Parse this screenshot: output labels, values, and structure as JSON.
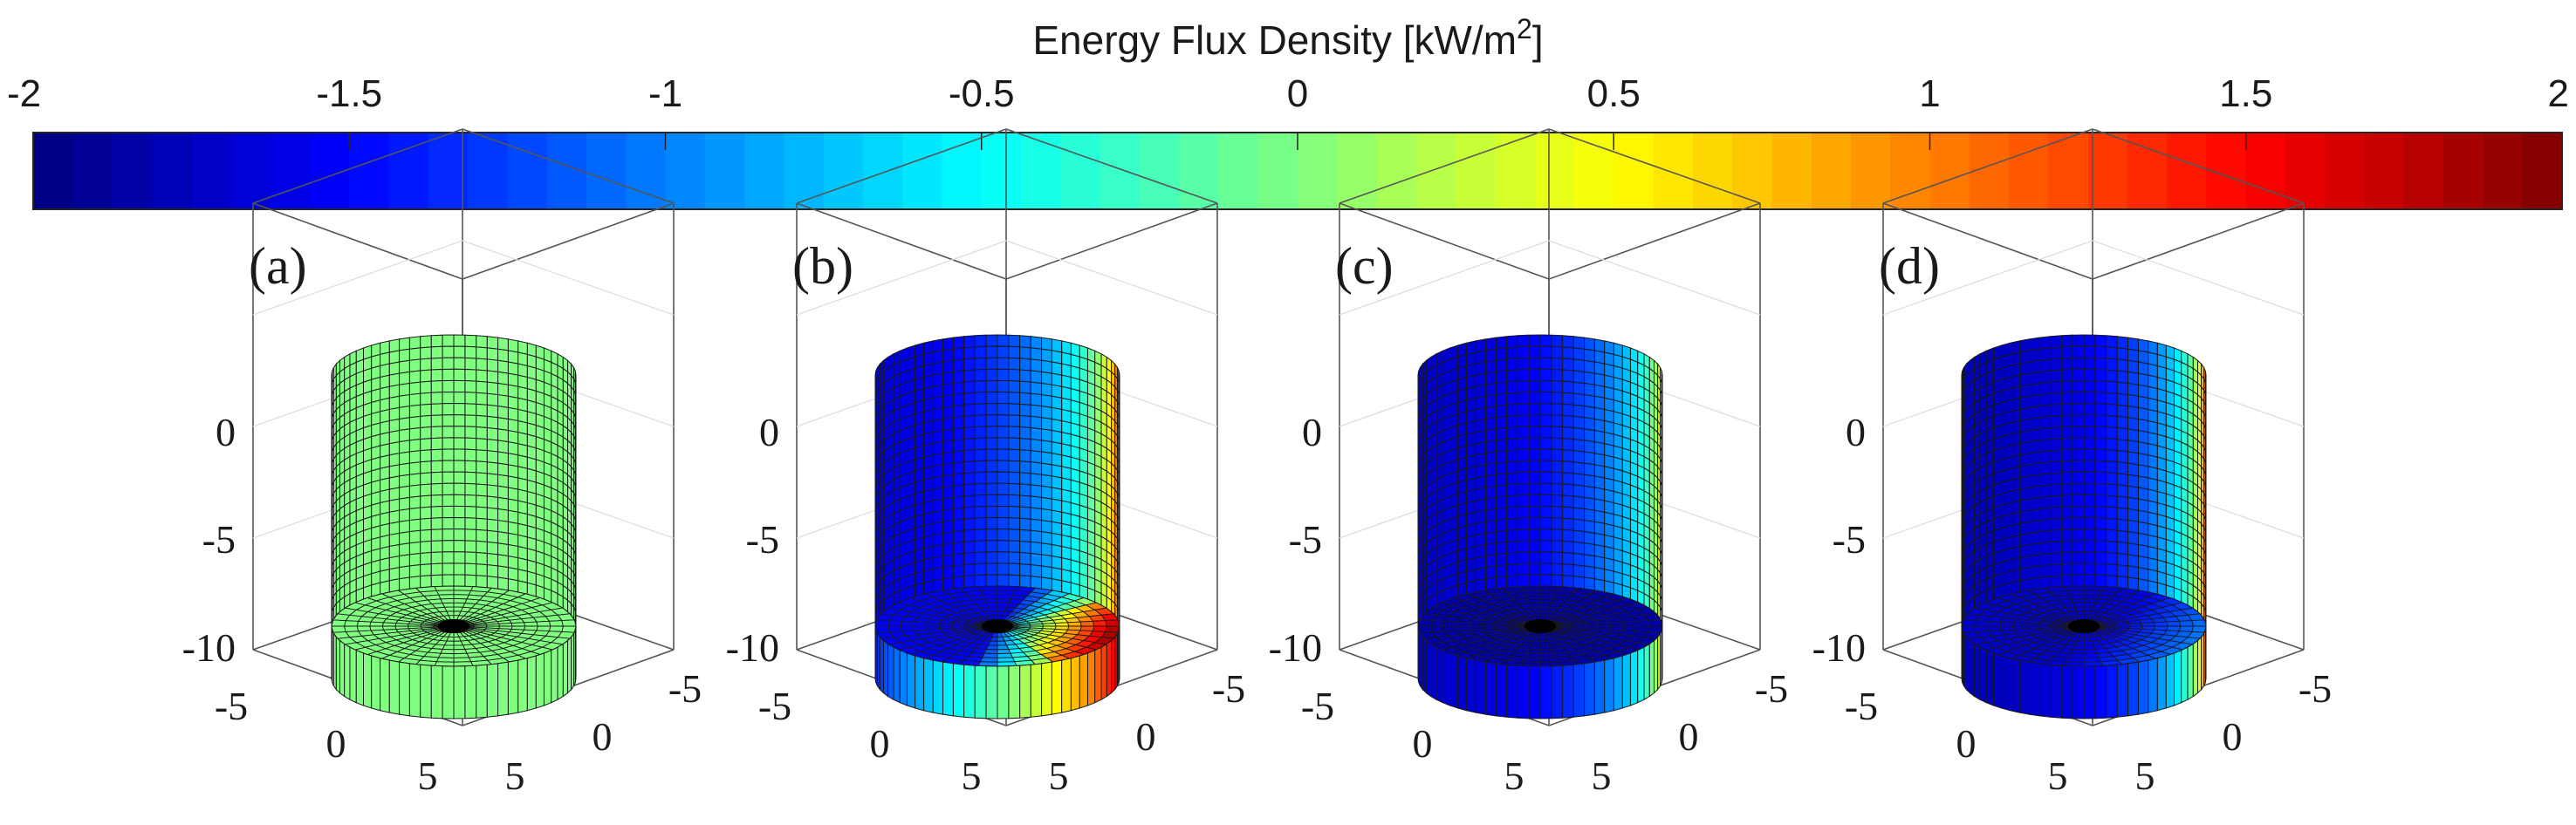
{
  "colorbar": {
    "title_main": "Energy Flux Density [kW/m",
    "title_sup": "2",
    "title_end": "]",
    "min": -2,
    "max": 2,
    "ticks": [
      "-2",
      "-1.5",
      "-1",
      "-0.5",
      "0",
      "0.5",
      "1",
      "1.5",
      "2"
    ],
    "colormap": "jet",
    "levels": 64
  },
  "panels": [
    {
      "label": "(a)",
      "pattern": "uniform"
    },
    {
      "label": "(b)",
      "pattern": "wedge-hot-right"
    },
    {
      "label": "(c)",
      "pattern": "wall-gradient"
    },
    {
      "label": "(d)",
      "pattern": "wall-gradient-strong"
    }
  ],
  "axes": {
    "z_ticks": [
      "0",
      "-5",
      "-10"
    ],
    "x_ticks": [
      "-5",
      "0",
      "5"
    ],
    "y_ticks": [
      "-5",
      "0",
      "5"
    ]
  }
}
